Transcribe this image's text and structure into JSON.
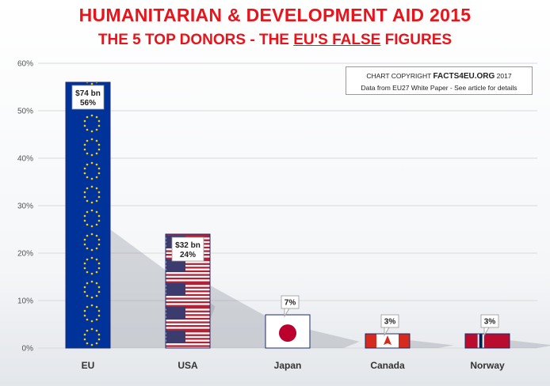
{
  "header": {
    "title_line1": "HUMANITARIAN & DEVELOPMENT AID 2015",
    "title_line2_prefix": "THE 5 TOP DONORS - THE ",
    "title_line2_emph": "EU'S FALSE",
    "title_line2_suffix": " FIGURES"
  },
  "copyright": {
    "prefix": "CHART COPYRIGHT",
    "brand": "FACTS4EU.ORG",
    "year": "2017",
    "source": "Data from EU27 White Paper - See article for details"
  },
  "chart_data": {
    "type": "bar",
    "title": "HUMANITARIAN & DEVELOPMENT AID 2015",
    "subtitle": "THE 5 TOP DONORS - THE EU'S FALSE FIGURES",
    "categories": [
      "EU",
      "USA",
      "Japan",
      "Canada",
      "Norway"
    ],
    "values": [
      56,
      24,
      7,
      3,
      3
    ],
    "amounts": [
      "$74 bn",
      "$32 bn",
      "",
      "",
      ""
    ],
    "labels": [
      "56%",
      "24%",
      "7%",
      "3%",
      "3%"
    ],
    "unit": "%",
    "ylim": [
      0,
      60
    ],
    "yticks": [
      0,
      10,
      20,
      30,
      40,
      50,
      60
    ],
    "ytick_labels": [
      "0%",
      "10%",
      "20%",
      "30%",
      "40%",
      "50%",
      "60%"
    ],
    "grid": true,
    "bar_fills": [
      "eu-flag",
      "us-flag",
      "japan-flag",
      "canada-flag",
      "norway-flag"
    ]
  },
  "colors": {
    "title_red": "#e8141b",
    "eu_blue": "#003399",
    "eu_star": "#ffcc00",
    "us_red": "#b22234",
    "us_blue": "#3c3b6e",
    "japan_red": "#bc002d",
    "canada_red": "#d52b1e",
    "norway_red": "#ba0c2f",
    "norway_blue": "#00205b",
    "grid": "#d9d9d9"
  }
}
